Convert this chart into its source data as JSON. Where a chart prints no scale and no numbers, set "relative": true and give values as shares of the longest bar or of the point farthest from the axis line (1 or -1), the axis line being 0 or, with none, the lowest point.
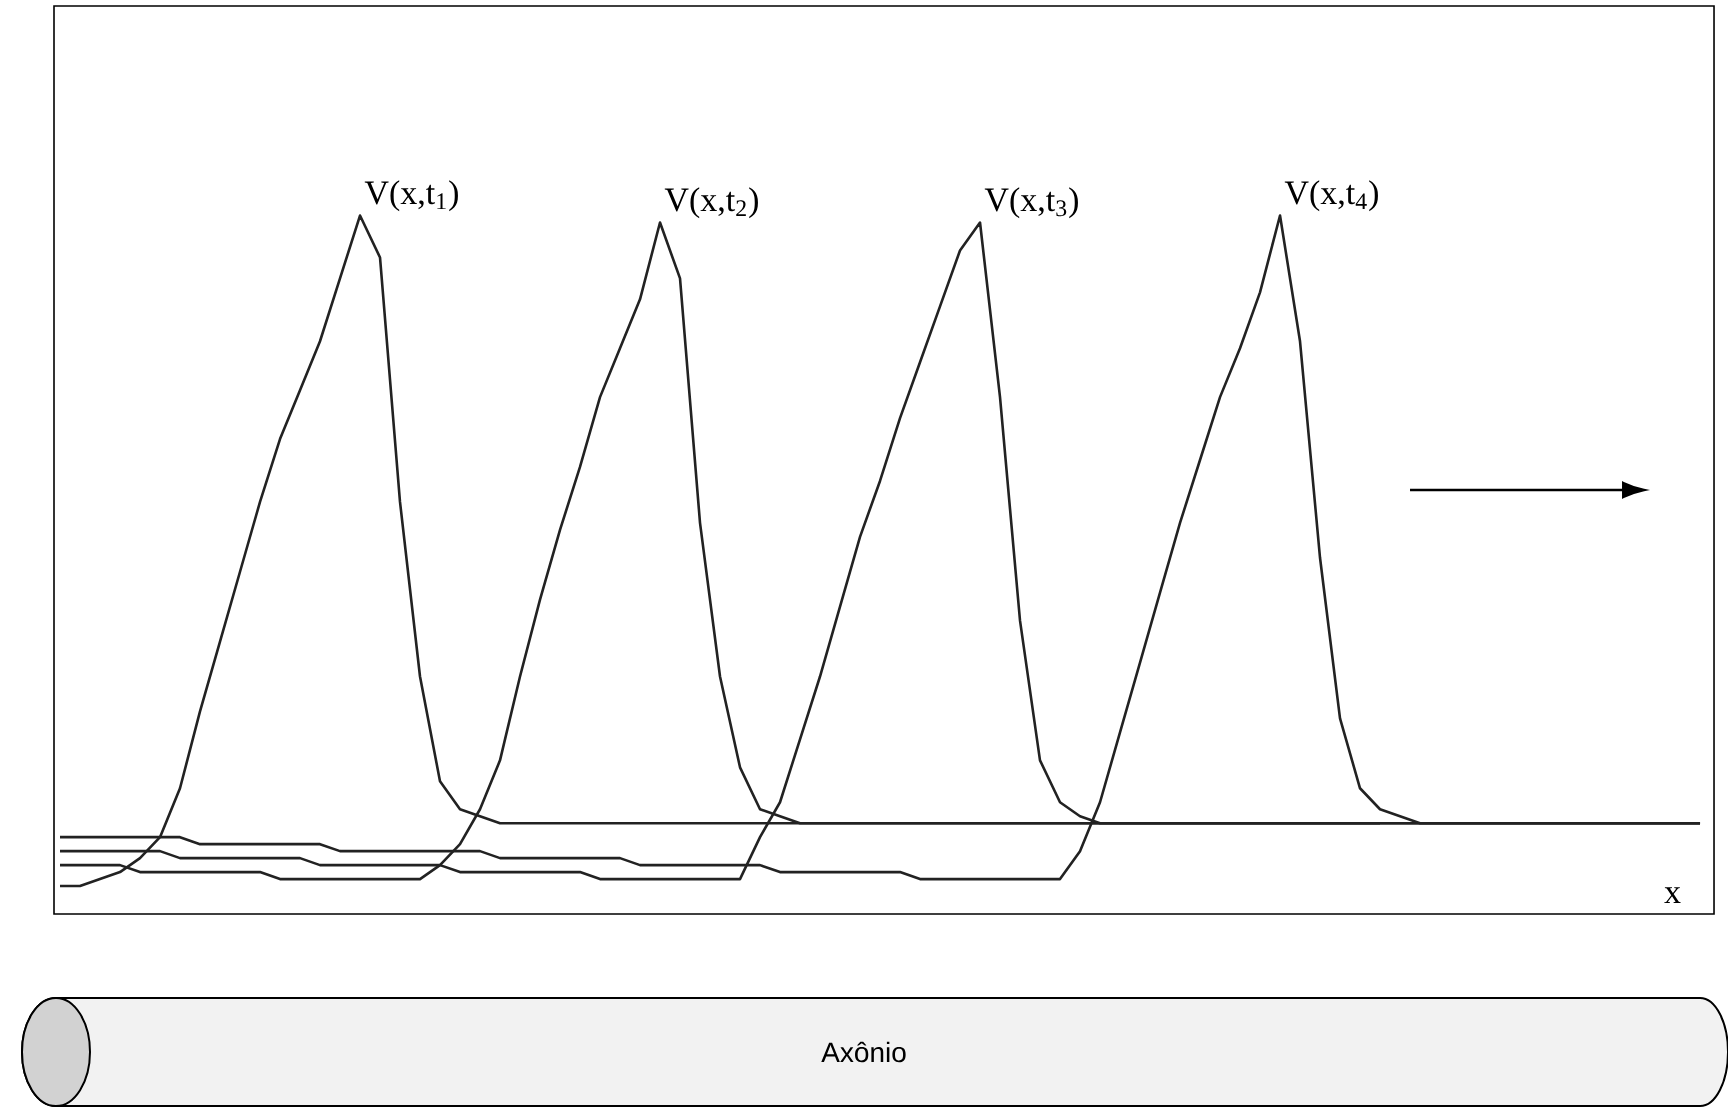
{
  "chart_data": {
    "type": "line",
    "relative": true,
    "xlabel": "x",
    "categories": [
      null,
      null,
      null,
      null,
      null,
      null,
      null,
      null,
      null,
      null,
      null,
      null,
      null,
      null,
      null,
      null,
      null,
      null,
      null,
      null,
      null,
      null,
      null,
      null,
      null,
      null,
      null,
      null,
      null,
      null,
      null,
      null,
      null,
      null,
      null,
      null,
      null,
      null,
      null,
      null,
      null,
      null,
      null,
      null,
      null,
      null,
      null,
      null,
      null,
      null,
      null,
      null,
      null,
      null,
      null,
      null,
      null,
      null,
      null,
      null,
      null,
      null,
      null,
      null,
      null,
      null,
      null,
      null,
      null,
      null,
      null,
      null,
      null,
      null,
      null,
      null,
      null,
      null,
      null,
      null,
      null,
      null,
      null
    ],
    "series": [
      {
        "name": "V(x,t$_{1}$)",
        "color": "#222222",
        "values": [
          0.04,
          0.04,
          0.05,
          0.06,
          0.08,
          0.11,
          0.18,
          0.29,
          0.39,
          0.49,
          0.59,
          0.68,
          0.75,
          0.82,
          0.91,
          1.0,
          0.94,
          0.59,
          0.34,
          0.19,
          0.15,
          0.14,
          0.13,
          0.13,
          0.13,
          0.13,
          0.13,
          0.13,
          0.13,
          0.13,
          0.13,
          0.13,
          0.13,
          0.13,
          0.13,
          0.13,
          0.13,
          0.13,
          0.13,
          0.13,
          0.13,
          0.13,
          0.13,
          0.13,
          0.13,
          0.13,
          0.13,
          0.13,
          0.13,
          0.13,
          0.13,
          0.13,
          0.13,
          0.13,
          0.13,
          0.13,
          0.13,
          0.13,
          0.13,
          0.13,
          0.13,
          0.13,
          0.13,
          0.13,
          0.13,
          0.13,
          0.13,
          null,
          null,
          null,
          null,
          null,
          null,
          null,
          null,
          null,
          null,
          null,
          null,
          null,
          null,
          null,
          null
        ]
      },
      {
        "name": "V(x,t$_{2}$)",
        "color": "#222222",
        "values": [
          0.07,
          0.07,
          0.07,
          0.07,
          0.06,
          0.06,
          0.06,
          0.06,
          0.06,
          0.06,
          0.06,
          0.05,
          0.05,
          0.05,
          0.05,
          0.05,
          0.05,
          0.05,
          0.05,
          0.07,
          0.1,
          0.15,
          0.22,
          0.34,
          0.45,
          0.55,
          0.64,
          0.74,
          0.81,
          0.88,
          0.99,
          0.91,
          0.56,
          0.34,
          0.21,
          0.15,
          0.14,
          0.13,
          0.13,
          0.13,
          0.13,
          0.13,
          0.13,
          0.13,
          0.13,
          0.13,
          0.13,
          0.13,
          0.13,
          0.13,
          0.13,
          0.13,
          0.13,
          0.13,
          0.13,
          0.13,
          0.13,
          0.13,
          0.13,
          0.13,
          0.13,
          0.13,
          0.13,
          0.13,
          0.13,
          0.13,
          0.13,
          0.13,
          0.13,
          0.13,
          0.13,
          0.13,
          0.13,
          0.13,
          0.13,
          0.13,
          0.13,
          0.13,
          0.13,
          0.13,
          0.13,
          0.13,
          0.13
        ]
      },
      {
        "name": "V(x,t$_{3}$)",
        "color": "#222222",
        "values": [
          0.09,
          0.09,
          0.09,
          0.09,
          0.09,
          0.09,
          0.08,
          0.08,
          0.08,
          0.08,
          0.08,
          0.08,
          0.08,
          0.07,
          0.07,
          0.07,
          0.07,
          0.07,
          0.07,
          0.07,
          0.06,
          0.06,
          0.06,
          0.06,
          0.06,
          0.06,
          0.06,
          0.05,
          0.05,
          0.05,
          0.05,
          0.05,
          0.05,
          0.05,
          0.05,
          0.11,
          0.16,
          0.25,
          0.34,
          0.44,
          0.54,
          0.62,
          0.71,
          0.79,
          0.87,
          0.95,
          0.99,
          0.74,
          0.42,
          0.22,
          0.16,
          0.14,
          0.13,
          0.13,
          0.13,
          0.13,
          0.13,
          0.13,
          0.13,
          0.13,
          0.13,
          0.13,
          0.13,
          0.13,
          0.13,
          0.13,
          0.13,
          0.13,
          0.13,
          0.13,
          0.13,
          0.13,
          0.13,
          0.13,
          0.13,
          0.13,
          0.13,
          0.13,
          0.13,
          0.13,
          0.13,
          0.13,
          0.13
        ]
      },
      {
        "name": "V(x,t$_{4}$)",
        "color": "#222222",
        "values": [
          0.11,
          0.11,
          0.11,
          0.11,
          0.11,
          0.11,
          0.11,
          0.1,
          0.1,
          0.1,
          0.1,
          0.1,
          0.1,
          0.1,
          0.09,
          0.09,
          0.09,
          0.09,
          0.09,
          0.09,
          0.09,
          0.09,
          0.08,
          0.08,
          0.08,
          0.08,
          0.08,
          0.08,
          0.08,
          0.07,
          0.07,
          0.07,
          0.07,
          0.07,
          0.07,
          0.07,
          0.06,
          0.06,
          0.06,
          0.06,
          0.06,
          0.06,
          0.06,
          0.05,
          0.05,
          0.05,
          0.05,
          0.05,
          0.05,
          0.05,
          0.05,
          0.09,
          0.16,
          0.26,
          0.36,
          0.46,
          0.56,
          0.65,
          0.74,
          0.81,
          0.89,
          1.0,
          0.82,
          0.51,
          0.28,
          0.18,
          0.15,
          0.14,
          0.13,
          0.13,
          0.13,
          0.13,
          0.13,
          0.13,
          0.13,
          0.13,
          0.13,
          0.13,
          0.13,
          0.13,
          0.13,
          0.13,
          0.13
        ]
      }
    ],
    "annotations": [
      "Axônio"
    ]
  }
}
